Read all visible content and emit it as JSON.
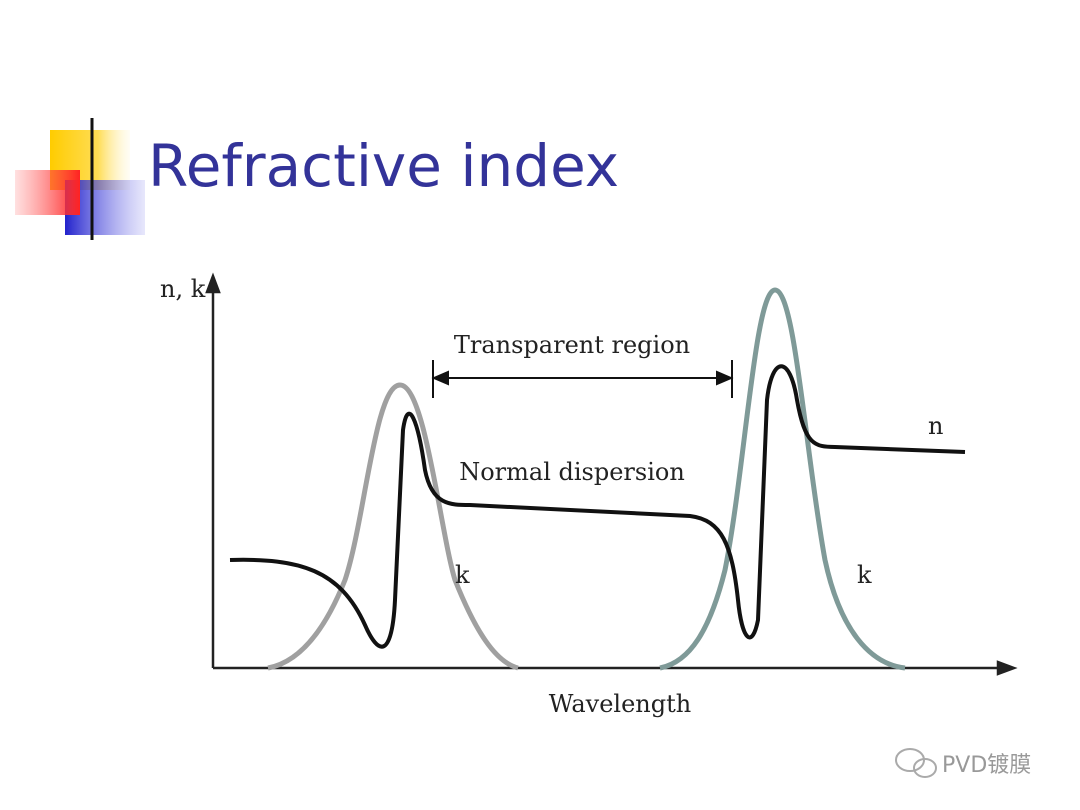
{
  "header": {
    "title": "Refractive index"
  },
  "diagram": {
    "y_axis_label": "n, k",
    "x_axis_label": "Wavelength",
    "region_label": "Transparent region",
    "dispersion_label": "Normal dispersion",
    "n_label": "n",
    "k_label_1": "k",
    "k_label_2": "k"
  },
  "watermark": "PVD镀膜"
}
